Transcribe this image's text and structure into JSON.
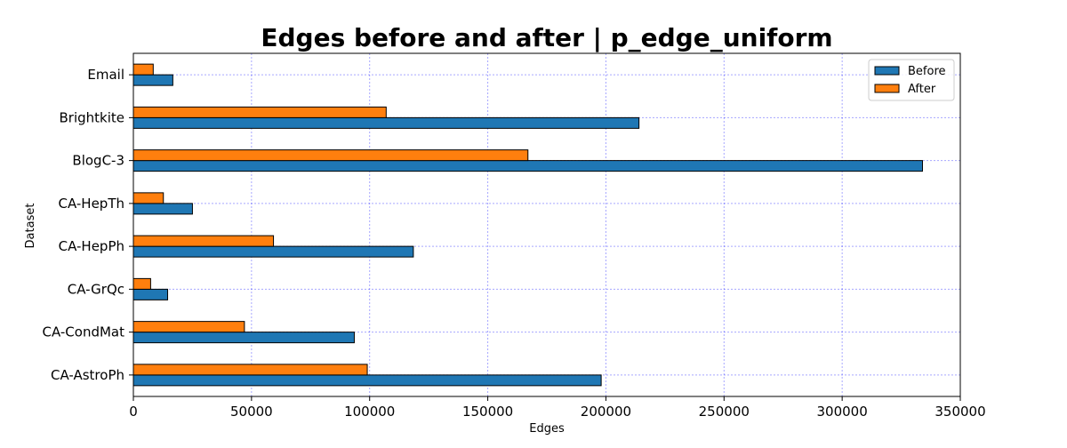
{
  "chart_data": {
    "type": "bar",
    "orientation": "horizontal",
    "title": "Edges before and after | p_edge_uniform",
    "xlabel": "Edges",
    "ylabel": "Dataset",
    "categories": [
      "CA-AstroPh",
      "CA-CondMat",
      "CA-GrQc",
      "CA-HepPh",
      "CA-HepTh",
      "BlogC-3",
      "Brightkite",
      "Email"
    ],
    "series": [
      {
        "name": "Before",
        "color": "#1f77b4",
        "values": [
          198000,
          93500,
          14500,
          118500,
          25000,
          334000,
          214000,
          16700
        ]
      },
      {
        "name": "After",
        "color": "#ff7f0e",
        "values": [
          99000,
          47000,
          7300,
          59300,
          12700,
          167000,
          107000,
          8400
        ]
      }
    ],
    "xlim": [
      0,
      350000
    ],
    "xticks": [
      0,
      50000,
      100000,
      150000,
      200000,
      250000,
      300000,
      350000
    ],
    "xtick_labels": [
      "0",
      "50000",
      "100000",
      "150000",
      "200000",
      "250000",
      "300000",
      "350000"
    ],
    "grid": true,
    "grid_color": "#0000ff",
    "legend_position": "top-right"
  }
}
